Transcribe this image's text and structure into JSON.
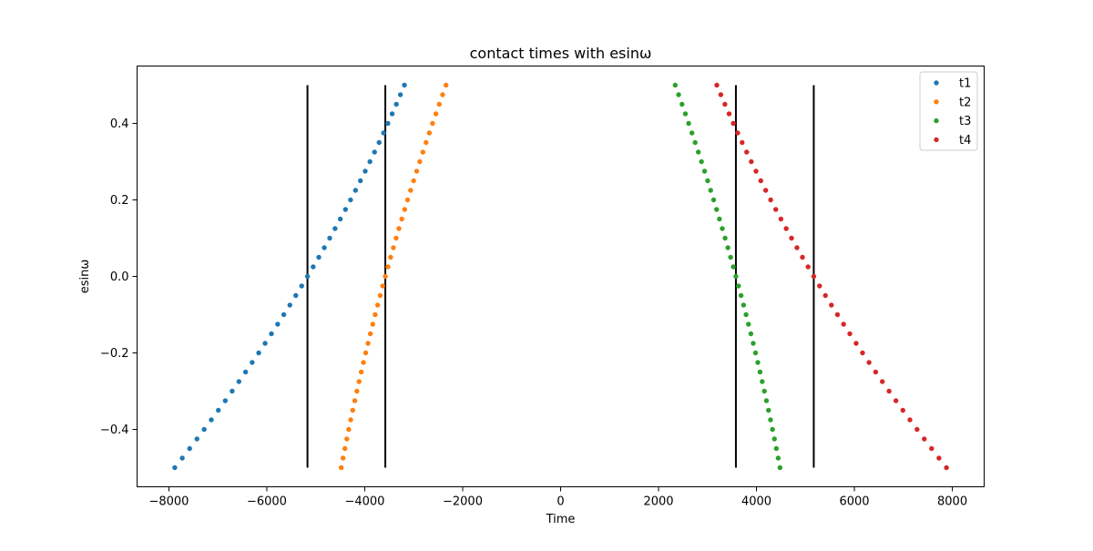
{
  "chart_data": {
    "type": "scatter",
    "title": "contact times with esinω",
    "xlabel": "Time",
    "ylabel": "esinω",
    "xlim": [
      -8000,
      8000
    ],
    "ylim": [
      -0.5,
      0.5
    ],
    "xticks": [
      -8000,
      -6000,
      -4000,
      -2000,
      0,
      2000,
      4000,
      6000,
      8000
    ],
    "xtick_labels": [
      "−8000",
      "−6000",
      "−4000",
      "−2000",
      "0",
      "2000",
      "4000",
      "6000",
      "8000"
    ],
    "yticks": [
      -0.4,
      -0.2,
      0.0,
      0.2,
      0.4
    ],
    "ytick_labels": [
      "−0.4",
      "−0.2",
      "0.0",
      "0.2",
      "0.4"
    ],
    "grid": false,
    "legend_position": "top-right",
    "y_values": {
      "start": -0.5,
      "end": 0.5,
      "count": 41
    },
    "series": [
      {
        "name": "t1",
        "color": "#1f77b4",
        "x_at_y_min": -7880,
        "x_at_y_zero": -5170,
        "x_at_y_max": -3190
      },
      {
        "name": "t2",
        "color": "#ff7f0e",
        "x_at_y_min": -4480,
        "x_at_y_zero": -3580,
        "x_at_y_max": -2340
      },
      {
        "name": "t3",
        "color": "#2ca02c",
        "x_at_y_min": 4480,
        "x_at_y_zero": 3580,
        "x_at_y_max": 2340
      },
      {
        "name": "t4",
        "color": "#d62728",
        "x_at_y_min": 7880,
        "x_at_y_zero": 5170,
        "x_at_y_max": 3190
      }
    ],
    "vertical_lines": {
      "color": "#000000",
      "x": [
        -5170,
        -3580,
        3580,
        5170
      ],
      "y_range": [
        -0.5,
        0.5
      ]
    }
  }
}
